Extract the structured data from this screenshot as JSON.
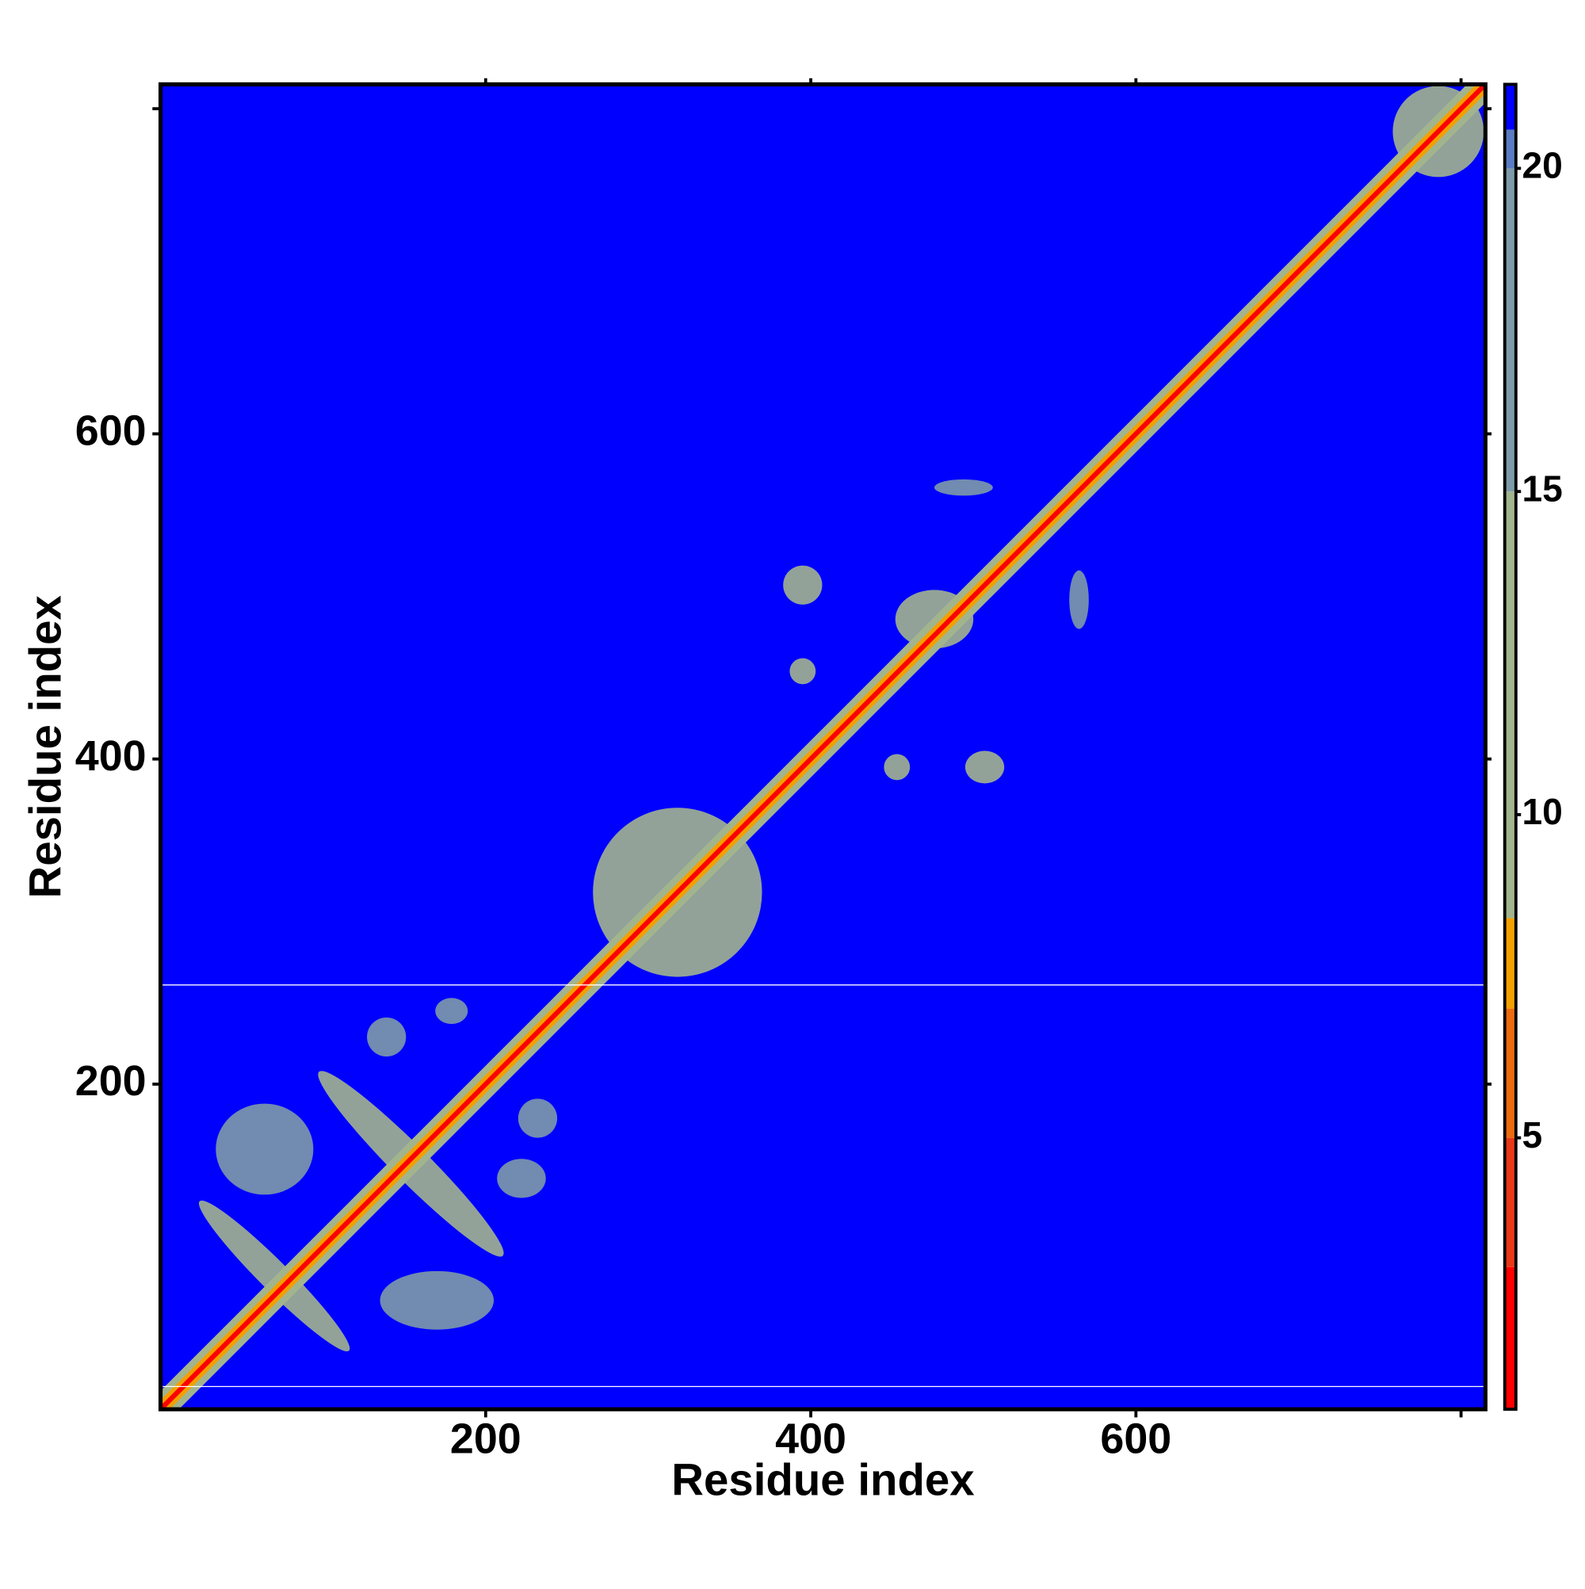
{
  "chart_data": {
    "type": "contact-map",
    "xlabel": "Residue index",
    "ylabel": "Residue index",
    "xlim": [
      0,
      815
    ],
    "ylim": [
      0,
      815
    ],
    "xticks": [
      200,
      400,
      600,
      {
        "value": 800,
        "label": null
      }
    ],
    "yticks": [
      200,
      400,
      600,
      {
        "value": 800,
        "label": null
      }
    ],
    "background": 21,
    "colorbar": {
      "lim": [
        0.8,
        21.3
      ],
      "ticks": [
        5,
        10,
        15,
        20
      ],
      "stops": [
        {
          "value": 0.8,
          "color": "#ff0000"
        },
        {
          "value": 3,
          "color": "#e83818"
        },
        {
          "value": 5,
          "color": "#ec6a10"
        },
        {
          "value": 7,
          "color": "#f2a000"
        },
        {
          "value": 8.4,
          "color": "#a2b48e"
        },
        {
          "value": 15,
          "color": "#7d9aa8"
        },
        {
          "value": 20,
          "color": "#5a7cc4"
        },
        {
          "value": 20.6,
          "color": "#0000ff"
        }
      ]
    },
    "diagonal": [
      {
        "width": 16,
        "value": 14
      },
      {
        "width": 8,
        "value": 7
      },
      {
        "width": 3,
        "value": 2
      }
    ],
    "gaps": [
      261,
      14
    ],
    "features": [
      {
        "x": 786,
        "y": 786,
        "rx": 28,
        "ry": 28,
        "angle": 0,
        "value": 14
      },
      {
        "x": 318,
        "y": 318,
        "rx": 52,
        "ry": 52,
        "angle": 0,
        "value": 13
      },
      {
        "x": 395,
        "y": 507,
        "rx": 12,
        "ry": 12,
        "angle": 0,
        "value": 14
      },
      {
        "x": 395,
        "y": 454,
        "rx": 8,
        "ry": 8,
        "angle": 0,
        "value": 14
      },
      {
        "x": 453,
        "y": 395,
        "rx": 8,
        "ry": 8,
        "angle": 0,
        "value": 14
      },
      {
        "x": 507,
        "y": 395,
        "rx": 12,
        "ry": 10,
        "angle": 0,
        "value": 14
      },
      {
        "x": 494,
        "y": 567,
        "rx": 18,
        "ry": 5,
        "angle": 0,
        "value": 15
      },
      {
        "x": 565,
        "y": 498,
        "rx": 6,
        "ry": 18,
        "angle": 0,
        "value": 15
      },
      {
        "x": 476,
        "y": 486,
        "rx": 24,
        "ry": 18,
        "angle": 0,
        "value": 12
      },
      {
        "x": 154,
        "y": 151,
        "rx": 80,
        "ry": 11,
        "angle": 45,
        "value": 12
      },
      {
        "x": 70,
        "y": 82,
        "rx": 65,
        "ry": 9,
        "angle": 45,
        "value": 12
      },
      {
        "x": 170,
        "y": 67,
        "rx": 35,
        "ry": 18,
        "angle": 0,
        "value": 16
      },
      {
        "x": 64,
        "y": 160,
        "rx": 30,
        "ry": 28,
        "angle": 0,
        "value": 16
      },
      {
        "x": 232,
        "y": 179,
        "rx": 12,
        "ry": 12,
        "angle": 0,
        "value": 16
      },
      {
        "x": 222,
        "y": 142,
        "rx": 15,
        "ry": 12,
        "angle": 0,
        "value": 16
      },
      {
        "x": 179,
        "y": 245,
        "rx": 10,
        "ry": 8,
        "angle": 0,
        "value": 16
      },
      {
        "x": 139,
        "y": 229,
        "rx": 12,
        "ry": 12,
        "angle": 0,
        "value": 16
      }
    ]
  }
}
